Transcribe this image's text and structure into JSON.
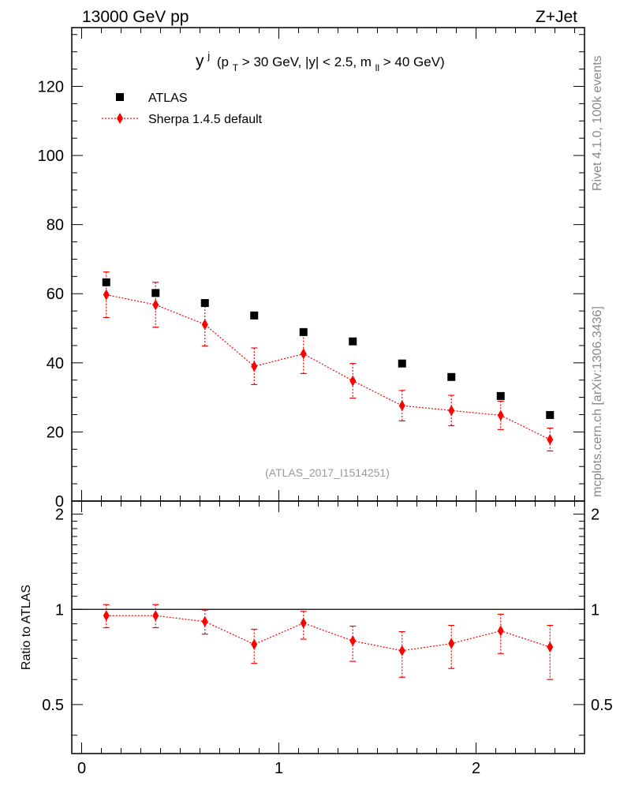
{
  "header": {
    "left": "13000 GeV pp",
    "right": "Z+Jet"
  },
  "side_labels": {
    "rivet": "Rivet 4.1.0,  100k events",
    "source": "mcplots.cern.ch [arXiv:1306.3436]"
  },
  "chart_data": [
    {
      "type": "scatter",
      "panel": "main",
      "title": {
        "y": "y",
        "j": "j",
        "p": "(p",
        "T": "T",
        "mid": " > 30 GeV, |y| < 2.5, m",
        "ll": "ll",
        "end": "> 40 GeV)"
      },
      "watermark": "(ATLAS_2017_I1514251)",
      "xlim": [
        -0.05,
        2.55
      ],
      "ylim": [
        0,
        137
      ],
      "y_ticks": [
        0,
        20,
        40,
        60,
        80,
        100,
        120
      ],
      "y_tick_labels": [
        "0",
        "20",
        "40",
        "60",
        "80",
        "100",
        "120"
      ],
      "legend_position": "top-left",
      "series": [
        {
          "name": "ATLAS",
          "style": "data",
          "color": "#000000",
          "x": [
            0.125,
            0.375,
            0.625,
            0.875,
            1.125,
            1.375,
            1.625,
            1.875,
            2.125,
            2.375
          ],
          "y": [
            63.3,
            60.2,
            57.3,
            53.7,
            48.9,
            46.2,
            39.8,
            35.9,
            30.4,
            24.9
          ]
        },
        {
          "name": "Sherpa 1.4.5 default",
          "style": "mc",
          "color": "#ff0000",
          "x": [
            0.125,
            0.375,
            0.625,
            0.875,
            1.125,
            1.375,
            1.625,
            1.875,
            2.125,
            2.375
          ],
          "y": [
            59.7,
            56.8,
            51.1,
            39.0,
            42.6,
            34.8,
            27.6,
            26.2,
            24.8,
            17.8
          ],
          "err_lo": [
            6.6,
            6.5,
            6.2,
            5.3,
            5.7,
            5.0,
            4.4,
            4.4,
            4.1,
            3.3
          ],
          "err_hi": [
            6.6,
            6.5,
            6.2,
            5.3,
            5.7,
            5.0,
            4.4,
            4.4,
            4.1,
            3.3
          ]
        }
      ]
    },
    {
      "type": "scatter",
      "panel": "ratio",
      "ylabel": "Ratio to ATLAS",
      "xlim": [
        -0.05,
        2.55
      ],
      "ylim": [
        0.35,
        2.2
      ],
      "y_scale": "log",
      "reference": 1,
      "x_ticks": [
        0,
        1,
        2
      ],
      "x_tick_labels": [
        "0",
        "1",
        "2"
      ],
      "y_ticks": [
        0.5,
        1,
        2
      ],
      "y_tick_labels": [
        "0.5",
        "1",
        "2"
      ],
      "series": [
        {
          "name": "Sherpa 1.4.5 default",
          "color": "#ff0000",
          "x": [
            0.125,
            0.375,
            0.625,
            0.875,
            1.125,
            1.375,
            1.625,
            1.875,
            2.125,
            2.375
          ],
          "y": [
            0.955,
            0.955,
            0.915,
            0.775,
            0.905,
            0.795,
            0.74,
            0.78,
            0.855,
            0.76
          ],
          "err_lo": [
            0.08,
            0.08,
            0.08,
            0.1,
            0.1,
            0.11,
            0.13,
            0.13,
            0.13,
            0.16
          ],
          "err_hi": [
            0.08,
            0.08,
            0.08,
            0.09,
            0.08,
            0.09,
            0.11,
            0.11,
            0.11,
            0.13
          ]
        }
      ]
    }
  ]
}
